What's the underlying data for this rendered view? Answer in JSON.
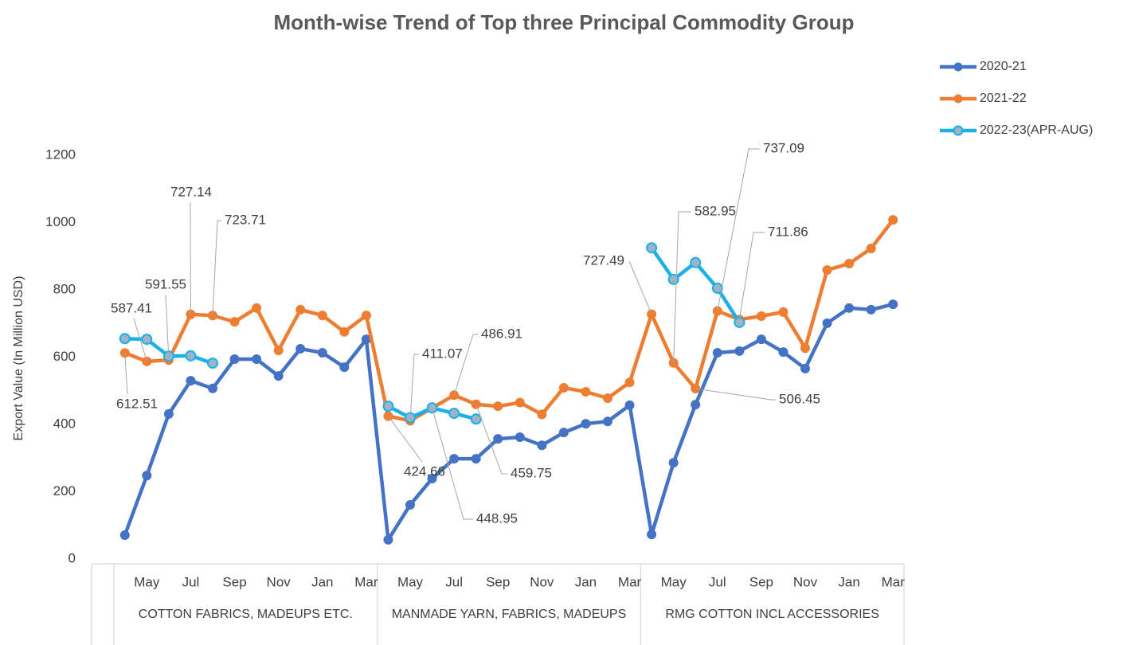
{
  "chart_data": {
    "type": "line",
    "title": "Month-wise Trend of Top three Principal Commodity Group",
    "y_label": "Export Value (In Million USD)",
    "categories": [
      null,
      "May",
      null,
      "Jul",
      null,
      "Sep",
      null,
      "Nov",
      null,
      "Jan",
      null,
      "Mar",
      null,
      "May",
      null,
      "Jul",
      null,
      "Sep",
      null,
      "Nov",
      null,
      "Jan",
      null,
      "Mar",
      null,
      "May",
      null,
      "Jul",
      null,
      "Sep",
      null,
      "Nov",
      null,
      "Jan",
      null,
      "Mar"
    ],
    "group_labels": [
      "COTTON FABRICS, MADEUPS ETC.",
      "MANMADE YARN, FABRICS, MADEUPS",
      "RMG COTTON INCL ACCESSORIES"
    ],
    "ylim": [
      0,
      1200
    ],
    "yticks": [
      0,
      200,
      400,
      600,
      800,
      1000,
      1200
    ],
    "grid": false,
    "legend": "top-right",
    "series": [
      {
        "name": "2020-21",
        "color": "#4472c4",
        "values": [
          71,
          248,
          431,
          530,
          507,
          594,
          594,
          544,
          625,
          613,
          570,
          653,
          57,
          161,
          239,
          298,
          298,
          357,
          362,
          338,
          376,
          402,
          409,
          457,
          73,
          286,
          459,
          613,
          618,
          653,
          615,
          566,
          701,
          746,
          741,
          757
        ]
      },
      {
        "name": "2021-22",
        "color": "#ed7d31",
        "values": [
          612.51,
          587.41,
          591.55,
          727.14,
          723.71,
          705,
          746,
          620,
          741,
          724,
          675,
          724,
          424.66,
          411.07,
          448.95,
          486.91,
          459.75,
          454,
          465,
          430,
          509,
          497,
          478,
          525,
          727.49,
          582.95,
          506.45,
          737.09,
          711.86,
          722,
          734,
          627,
          859,
          878,
          923,
          1008
        ]
      },
      {
        "name": "2022-23(APR-AUG)",
        "color": "#1ab0e8",
        "marker_color": "#9fb3c8",
        "values": [
          655,
          653,
          603,
          604,
          582,
          null,
          null,
          null,
          null,
          null,
          null,
          null,
          454,
          420,
          449,
          433,
          416,
          null,
          null,
          null,
          null,
          null,
          null,
          null,
          925,
          831,
          881,
          805,
          703,
          null,
          null,
          null,
          null,
          null,
          null,
          null
        ]
      }
    ]
  }
}
